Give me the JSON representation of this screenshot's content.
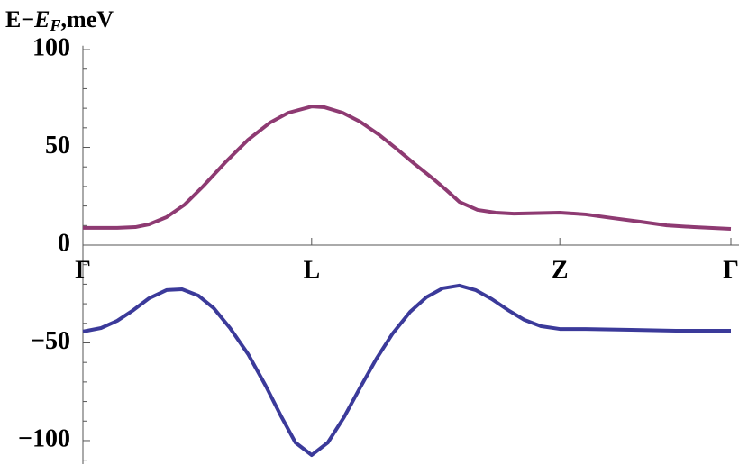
{
  "chart_data": {
    "type": "line",
    "y_label": {
      "prefix": "E−",
      "symbol": "E",
      "subscript": "F",
      "suffix": ",meV"
    },
    "xlim": [
      0,
      1
    ],
    "xticks": [
      {
        "value": 0,
        "label": "Γ"
      },
      {
        "value": 0.353,
        "label": "L"
      },
      {
        "value": 0.736,
        "label": "Z"
      },
      {
        "value": 1,
        "label": "Γ"
      }
    ],
    "ylim": [
      -112,
      102
    ],
    "yticks": [
      {
        "value": -100,
        "label": "−100"
      },
      {
        "value": -50,
        "label": "−50"
      },
      0,
      50,
      100
    ],
    "yminorticks": [
      -110,
      -90,
      -80,
      -70,
      -60,
      -40,
      -30,
      -20,
      -10,
      10,
      20,
      30,
      40,
      60,
      70,
      80,
      90
    ],
    "series": [
      {
        "color": "#8e3a72",
        "x": [
          0,
          0.053,
          0.081,
          0.102,
          0.129,
          0.157,
          0.185,
          0.22,
          0.255,
          0.289,
          0.317,
          0.353,
          0.373,
          0.401,
          0.428,
          0.456,
          0.484,
          0.512,
          0.54,
          0.561,
          0.581,
          0.609,
          0.637,
          0.665,
          0.736,
          0.776,
          0.818,
          0.86,
          0.901,
          0.943,
          1
        ],
        "values": [
          8.8,
          8.8,
          9.2,
          10.6,
          14.3,
          20.7,
          29.9,
          42.4,
          53.9,
          62.7,
          67.7,
          70.9,
          70.5,
          67.7,
          63.1,
          56.7,
          49.3,
          41.5,
          34.1,
          28.1,
          22.1,
          18.0,
          16.6,
          16.1,
          16.6,
          15.7,
          13.8,
          12.0,
          10.1,
          9.2,
          8.3
        ]
      },
      {
        "color": "#3b3a9a",
        "x": [
          0,
          0.028,
          0.053,
          0.078,
          0.102,
          0.129,
          0.153,
          0.178,
          0.202,
          0.227,
          0.255,
          0.282,
          0.306,
          0.328,
          0.353,
          0.378,
          0.403,
          0.428,
          0.453,
          0.478,
          0.505,
          0.53,
          0.555,
          0.581,
          0.606,
          0.631,
          0.656,
          0.681,
          0.707,
          0.736,
          0.776,
          0.846,
          0.915,
          1
        ],
        "values": [
          -44.2,
          -42.4,
          -38.7,
          -33.2,
          -27.2,
          -23.0,
          -22.6,
          -25.8,
          -32.3,
          -42.4,
          -55.8,
          -71.9,
          -87.6,
          -101.0,
          -107.4,
          -101.0,
          -88.0,
          -72.8,
          -58.1,
          -45.2,
          -34.1,
          -26.7,
          -22.1,
          -20.7,
          -23.0,
          -27.6,
          -33.2,
          -38.2,
          -41.5,
          -42.9,
          -42.9,
          -43.3,
          -43.8,
          -43.8
        ]
      }
    ]
  }
}
